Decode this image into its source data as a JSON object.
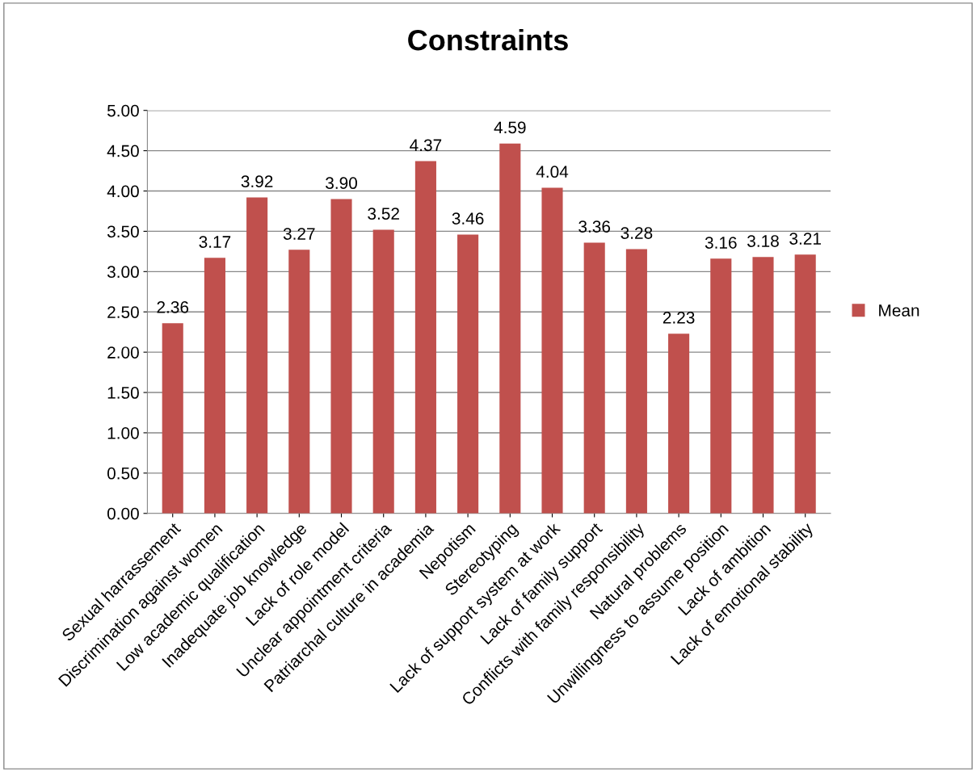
{
  "chart_data": {
    "type": "bar",
    "title": "Constraints",
    "categories": [
      "Sexual harrassement",
      "Discrimination against women",
      "Low academic qualification",
      "Inadequate job knowledge",
      "Lack of role model",
      "Unclear appointment criteria",
      "Patriarchal culture in academia",
      "Nepotism",
      "Stereotyping",
      "Lack of support system at work",
      "Lack of family support",
      "Conflicts with family responsibility",
      "Natural problems",
      "Unwillingness to assume position",
      "Lack of ambition",
      "Lack of emotional stability"
    ],
    "series": [
      {
        "name": "Mean",
        "color": "#c0504d",
        "values": [
          2.36,
          3.17,
          3.92,
          3.27,
          3.9,
          3.52,
          4.37,
          3.46,
          4.59,
          4.04,
          3.36,
          3.28,
          2.23,
          3.16,
          3.18,
          3.21
        ]
      }
    ],
    "value_labels": [
      "2.36",
      "3.17",
      "3.92",
      "3.27",
      "3.90",
      "3.52",
      "4.37",
      "3.46",
      "4.59",
      "4.04",
      "3.36",
      "3.28",
      "2.23",
      "3.16",
      "3.18",
      "3.21"
    ],
    "ylim": [
      0,
      5
    ],
    "yticks": [
      {
        "value": 0,
        "label": "0.00"
      },
      {
        "value": 0.5,
        "label": "0.50"
      },
      {
        "value": 1,
        "label": "1.00"
      },
      {
        "value": 1.5,
        "label": "1.50"
      },
      {
        "value": 2,
        "label": "2.00"
      },
      {
        "value": 2.5,
        "label": "2.50"
      },
      {
        "value": 3,
        "label": "3.00"
      },
      {
        "value": 3.5,
        "label": "3.50"
      },
      {
        "value": 4,
        "label": "4.00"
      },
      {
        "value": 4.5,
        "label": "4.50"
      },
      {
        "value": 5,
        "label": "5.00"
      }
    ],
    "grid": "y",
    "legend": "right"
  }
}
